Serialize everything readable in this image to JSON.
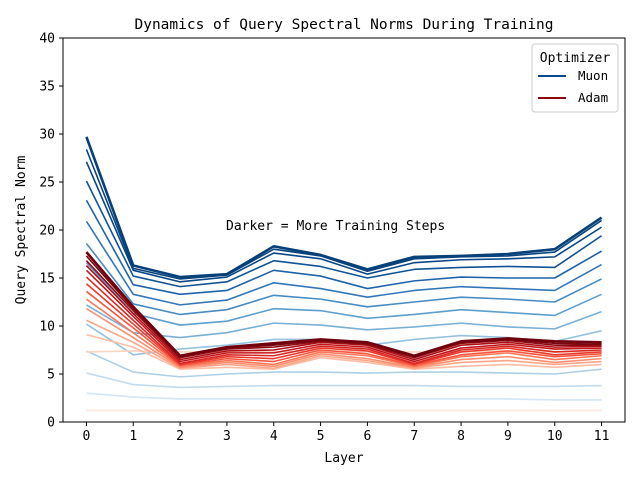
{
  "chart_data": {
    "type": "line",
    "title": "Dynamics of Query Spectral Norms During Training",
    "xlabel": "Layer",
    "ylabel": "Query Spectral Norm",
    "x": [
      0,
      1,
      2,
      3,
      4,
      5,
      6,
      7,
      8,
      9,
      10,
      11
    ],
    "xlim": [
      -0.5,
      11.5
    ],
    "ylim": [
      0,
      40
    ],
    "yticks": [
      0,
      5,
      10,
      15,
      20,
      25,
      30,
      35,
      40
    ],
    "grid": false,
    "annotation": "Darker = More Training Steps",
    "legend": {
      "title": "Optimizer",
      "placement": "top-right",
      "entries": [
        {
          "label": "Muon",
          "color": "#08468f"
        },
        {
          "label": "Adam",
          "color": "#8b0a12"
        }
      ]
    },
    "groups": [
      {
        "optimizer": "Muon",
        "colors": [
          "#e2eef9",
          "#d4e6f4",
          "#c3dbee",
          "#aed0e6",
          "#95c2de",
          "#79b0d6",
          "#5c9ecd",
          "#478bc2",
          "#3377b8",
          "#2163a8",
          "#125396",
          "#0a4686",
          "#08457f",
          "#08407a"
        ],
        "series": [
          [
            1.2,
            1.2,
            1.2,
            1.2,
            1.2,
            1.2,
            1.2,
            1.2,
            1.2,
            1.2,
            1.2,
            1.2
          ],
          [
            3.0,
            2.6,
            2.4,
            2.4,
            2.4,
            2.4,
            2.4,
            2.4,
            2.4,
            2.4,
            2.3,
            2.3
          ],
          [
            5.1,
            3.9,
            3.6,
            3.7,
            3.8,
            3.8,
            3.8,
            3.8,
            3.7,
            3.7,
            3.7,
            3.8
          ],
          [
            7.4,
            5.2,
            4.7,
            5.0,
            5.2,
            5.2,
            5.1,
            5.2,
            5.2,
            5.1,
            5.0,
            5.5
          ],
          [
            10.2,
            7.0,
            7.6,
            8.0,
            8.6,
            8.6,
            8.0,
            8.6,
            9.0,
            8.8,
            8.4,
            9.5
          ],
          [
            12.2,
            9.3,
            8.8,
            9.3,
            10.3,
            10.1,
            9.6,
            9.9,
            10.3,
            9.9,
            9.7,
            11.5
          ],
          [
            16.6,
            11.3,
            10.1,
            10.5,
            11.8,
            11.6,
            10.8,
            11.2,
            11.7,
            11.4,
            11.1,
            13.3
          ],
          [
            18.6,
            12.3,
            11.2,
            11.7,
            13.2,
            12.8,
            12.0,
            12.5,
            13.0,
            12.8,
            12.5,
            14.9
          ],
          [
            20.9,
            13.3,
            12.2,
            12.7,
            14.5,
            13.9,
            13.0,
            13.7,
            14.1,
            13.9,
            13.7,
            16.4
          ],
          [
            23.1,
            14.3,
            13.3,
            13.7,
            15.8,
            15.2,
            13.9,
            14.7,
            15.1,
            15.0,
            15.0,
            17.8
          ],
          [
            25.1,
            15.2,
            14.1,
            14.6,
            16.8,
            16.2,
            15.0,
            15.9,
            16.1,
            16.2,
            16.1,
            19.4
          ],
          [
            27.1,
            15.8,
            14.6,
            15.1,
            17.6,
            17.0,
            15.4,
            16.6,
            16.9,
            17.0,
            17.2,
            20.3
          ],
          [
            28.4,
            16.0,
            14.9,
            15.3,
            18.0,
            17.3,
            15.7,
            17.0,
            17.2,
            17.3,
            17.7,
            21.0
          ],
          [
            29.7,
            16.3,
            15.1,
            15.4,
            18.3,
            17.4,
            15.9,
            17.2,
            17.3,
            17.5,
            18.0,
            21.3
          ]
        ]
      },
      {
        "optimizer": "Adam",
        "colors": [
          "#fee7dc",
          "#fdd3c1",
          "#fcbda4",
          "#fca689",
          "#fc8f6f",
          "#fb7757",
          "#f6563f",
          "#e93b2d",
          "#d72924",
          "#c3161b",
          "#ad1117",
          "#8e0b12",
          "#7a0610",
          "#70000e"
        ],
        "series": [
          [
            1.2,
            1.2,
            1.2,
            1.2,
            1.2,
            1.2,
            1.2,
            1.2,
            1.2,
            1.2,
            1.2,
            1.2
          ],
          [
            7.3,
            7.4,
            7.3,
            7.3,
            7.3,
            7.4,
            7.3,
            7.3,
            7.3,
            7.4,
            7.3,
            7.3
          ],
          [
            9.1,
            7.8,
            5.5,
            5.7,
            5.5,
            6.7,
            6.2,
            5.5,
            5.8,
            6.0,
            5.7,
            6.0
          ],
          [
            10.6,
            8.3,
            5.6,
            6.0,
            5.6,
            6.9,
            6.4,
            5.6,
            6.2,
            6.4,
            6.0,
            6.3
          ],
          [
            11.8,
            8.8,
            5.7,
            6.2,
            5.8,
            7.1,
            6.6,
            5.7,
            6.5,
            6.8,
            6.2,
            6.6
          ],
          [
            12.8,
            9.3,
            5.8,
            6.4,
            6.0,
            7.3,
            6.9,
            5.8,
            6.8,
            7.2,
            6.5,
            6.9
          ],
          [
            13.6,
            9.8,
            5.9,
            6.6,
            6.3,
            7.5,
            7.1,
            5.9,
            7.0,
            7.4,
            6.8,
            7.1
          ],
          [
            14.4,
            10.2,
            6.0,
            6.8,
            6.6,
            7.7,
            7.4,
            6.0,
            7.3,
            7.7,
            7.0,
            7.3
          ],
          [
            15.1,
            10.6,
            6.1,
            7.0,
            6.9,
            7.9,
            7.6,
            6.1,
            7.5,
            7.9,
            7.3,
            7.5
          ],
          [
            15.8,
            11.0,
            6.3,
            7.2,
            7.2,
            8.1,
            7.8,
            6.3,
            7.7,
            8.1,
            7.6,
            7.7
          ],
          [
            16.3,
            11.3,
            6.5,
            7.4,
            7.5,
            8.3,
            8.0,
            6.5,
            8.0,
            8.3,
            7.8,
            7.9
          ],
          [
            16.8,
            11.6,
            6.7,
            7.6,
            7.8,
            8.4,
            8.1,
            6.7,
            8.2,
            8.5,
            8.0,
            8.0
          ],
          [
            17.3,
            11.8,
            6.8,
            7.7,
            8.0,
            8.5,
            8.2,
            6.8,
            8.3,
            8.6,
            8.2,
            8.1
          ],
          [
            17.7,
            12.0,
            6.9,
            7.8,
            8.2,
            8.6,
            8.3,
            6.9,
            8.4,
            8.7,
            8.4,
            8.3
          ]
        ]
      }
    ]
  }
}
